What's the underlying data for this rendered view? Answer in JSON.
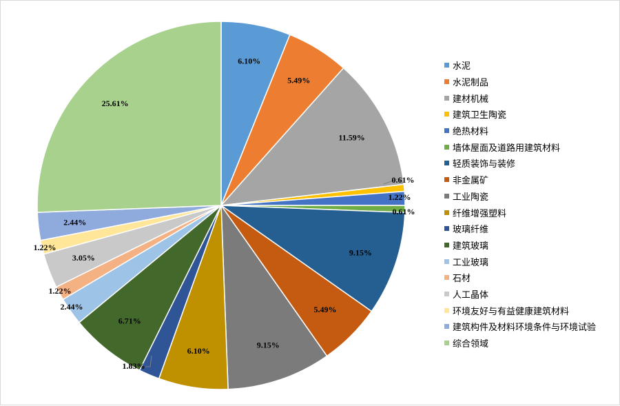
{
  "chart_data": {
    "type": "pie",
    "categories": [
      "水泥",
      "水泥制品",
      "建材机械",
      "建筑卫生陶瓷",
      "绝热材料",
      "墙体屋面及道路用建筑材料",
      "轻质装饰与装修",
      "非金属矿",
      "工业陶瓷",
      "纤维增强塑料",
      "玻璃纤维",
      "建筑玻璃",
      "工业玻璃",
      "石材",
      "人工晶体",
      "环境友好与有益健康建筑材料",
      "建筑构件及材料环境条件与环境试验",
      "综合领域"
    ],
    "slices": [
      {
        "label": "6.10%",
        "value": 6.1,
        "color": "#5b9bd5"
      },
      {
        "label": "5.49%",
        "value": 5.49,
        "color": "#ed7d31"
      },
      {
        "label": "11.59%",
        "value": 11.59,
        "color": "#a5a5a5"
      },
      {
        "label": "0.61%",
        "value": 0.61,
        "color": "#ffc000"
      },
      {
        "label": "1.22%",
        "value": 1.22,
        "color": "#4472c4"
      },
      {
        "label": "0.61%",
        "value": 0.61,
        "color": "#70ad47"
      },
      {
        "label": "9.15%",
        "value": 9.15,
        "color": "#255e91"
      },
      {
        "label": "5.49%",
        "value": 5.49,
        "color": "#c55a11"
      },
      {
        "label": "9.15%",
        "value": 9.15,
        "color": "#7b7b7b"
      },
      {
        "label": "6.10%",
        "value": 6.1,
        "color": "#bf9000"
      },
      {
        "label": "1.83%",
        "value": 1.83,
        "color": "#2f5597"
      },
      {
        "label": "6.71%",
        "value": 6.71,
        "color": "#43682b"
      },
      {
        "label": "2.44%",
        "value": 2.44,
        "color": "#9dc3e6"
      },
      {
        "label": "1.22%",
        "value": 1.22,
        "color": "#f4b183"
      },
      {
        "label": "3.05%",
        "value": 3.05,
        "color": "#c9c9c9"
      },
      {
        "label": "1.22%",
        "value": 1.22,
        "color": "#ffe699"
      },
      {
        "label": "2.44%",
        "value": 2.44,
        "color": "#8faadc"
      },
      {
        "label": "25.61%",
        "value": 25.61,
        "color": "#a9d18e"
      }
    ],
    "legend_position": "right"
  }
}
